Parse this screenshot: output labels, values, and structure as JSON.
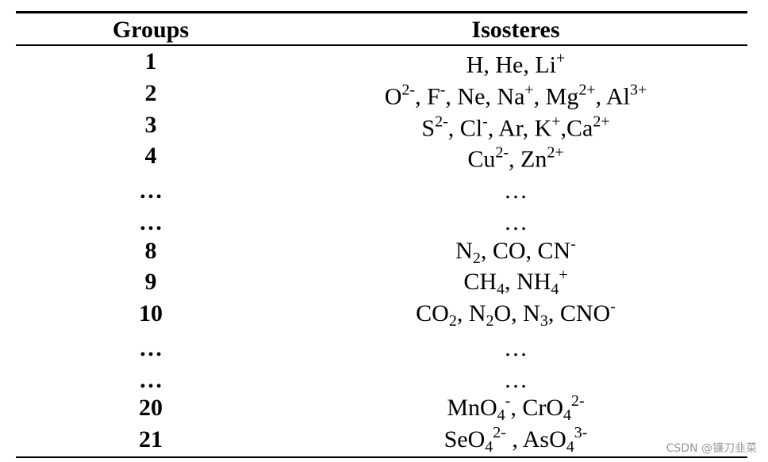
{
  "table": {
    "headers": [
      "Groups",
      "Isosteres"
    ],
    "rows": [
      {
        "group": "1",
        "isosteres": [
          "H, He, Li",
          {
            "sup": "+"
          }
        ]
      },
      {
        "group": "2",
        "isosteres": [
          "O",
          {
            "sup": "2-"
          },
          ", F",
          {
            "sup": "-"
          },
          ", Ne, Na",
          {
            "sup": "+"
          },
          ", Mg",
          {
            "sup": "2+"
          },
          ", Al",
          {
            "sup": "3+"
          }
        ]
      },
      {
        "group": "3",
        "isosteres": [
          "S",
          {
            "sup": "2-"
          },
          ", Cl",
          {
            "sup": "-"
          },
          ", Ar, K",
          {
            "sup": "+"
          },
          ",Ca",
          {
            "sup": "2+"
          }
        ]
      },
      {
        "group": "4",
        "isosteres": [
          "Cu",
          {
            "sup": "2-"
          },
          ", Zn",
          {
            "sup": "2+"
          }
        ]
      },
      {
        "group": "…",
        "isosteres": [
          "…"
        ]
      },
      {
        "group": "…",
        "isosteres": [
          "…"
        ]
      },
      {
        "group": "8",
        "isosteres": [
          "N",
          {
            "sub": "2"
          },
          ", CO, CN",
          {
            "sup": "-"
          }
        ]
      },
      {
        "group": "9",
        "isosteres": [
          "CH",
          {
            "sub": "4"
          },
          ", NH",
          {
            "sub": "4"
          },
          {
            "sup": "+"
          }
        ]
      },
      {
        "group": "10",
        "isosteres": [
          "CO",
          {
            "sub": "2"
          },
          ", N",
          {
            "sub": "2"
          },
          "O, N",
          {
            "sub": "3"
          },
          ", CNO",
          {
            "sup": "-"
          }
        ]
      },
      {
        "group": "…",
        "isosteres": [
          "…"
        ]
      },
      {
        "group": "…",
        "isosteres": [
          "…"
        ]
      },
      {
        "group": "20",
        "isosteres": [
          "MnO",
          {
            "sub": "4"
          },
          {
            "sup": "-"
          },
          ", CrO",
          {
            "sub": "4"
          },
          {
            "sup": "2-"
          }
        ]
      },
      {
        "group": "21",
        "isosteres": [
          "SeO",
          {
            "sub": "4"
          },
          {
            "sup": "2-"
          },
          " , AsO",
          {
            "sub": "4"
          },
          {
            "sup": "3-"
          }
        ]
      }
    ]
  },
  "watermark": "CSDN @镰刀韭菜"
}
